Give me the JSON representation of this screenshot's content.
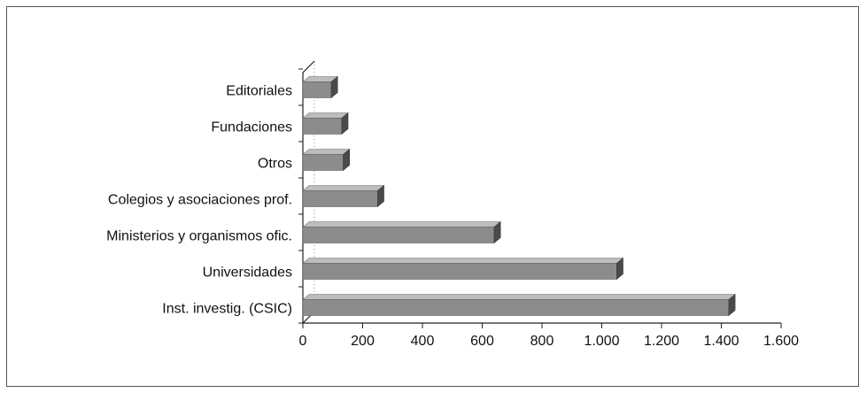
{
  "chart_data": {
    "type": "bar",
    "orientation": "horizontal",
    "style": "3d",
    "categories": [
      "Editoriales",
      "Fundaciones",
      "Otros",
      "Colegios y asociaciones prof.",
      "Ministerios y organismos ofic.",
      "Universidades",
      "Inst. investig. (CSIC)"
    ],
    "values": [
      95,
      130,
      135,
      250,
      640,
      1050,
      1425
    ],
    "x_ticks": [
      "0",
      "200",
      "400",
      "600",
      "800",
      "1.000",
      "1.200",
      "1.400",
      "1.600"
    ],
    "xlim": [
      0,
      1600
    ],
    "title": "",
    "xlabel": "",
    "ylabel": "",
    "grid": false,
    "legend": "none",
    "colors": {
      "bar_front": "#8c8c8c",
      "bar_top": "#bdbdbd",
      "bar_side": "#4a4a4a",
      "axis": "#222222"
    }
  }
}
